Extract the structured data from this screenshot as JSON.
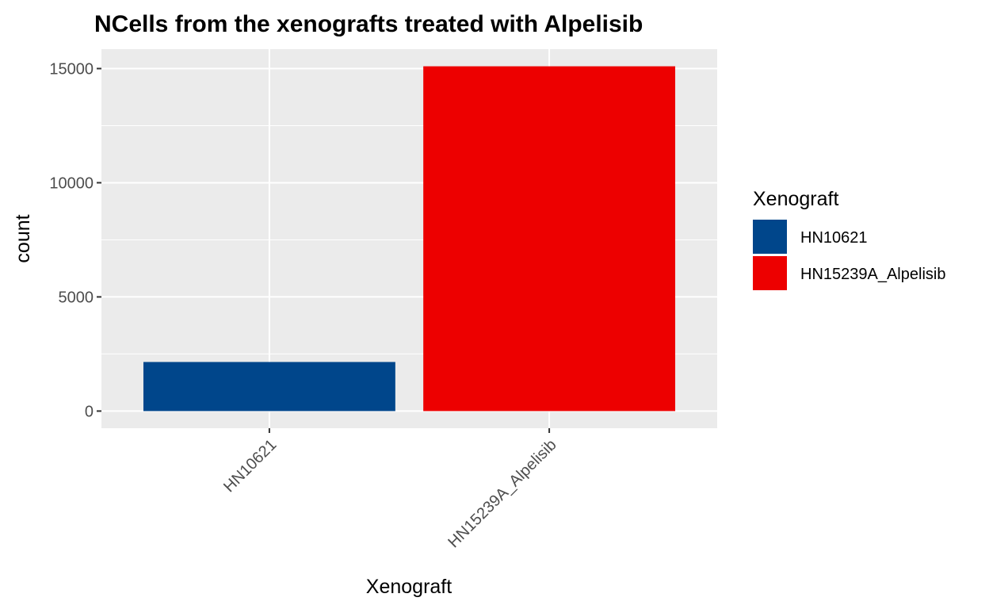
{
  "chart_data": {
    "type": "bar",
    "title": "NCells from the xenografts treated with Alpelisib",
    "xlabel": "Xenograft",
    "ylabel": "count",
    "categories": [
      "HN10621",
      "HN15239A_Alpelisib"
    ],
    "values": [
      2150,
      15100
    ],
    "colors": [
      "#00468B",
      "#ED0000"
    ],
    "ylim": [
      -750,
      15850
    ],
    "yticks": [
      0,
      5000,
      10000,
      15000
    ],
    "ytick_labels": [
      "0",
      "5000",
      "10000",
      "15000"
    ],
    "grid": true,
    "panel_background": "#EBEBEB",
    "legend": {
      "title": "Xenograft",
      "position": "right",
      "entries": [
        "HN10621",
        "HN15239A_Alpelisib"
      ]
    }
  }
}
